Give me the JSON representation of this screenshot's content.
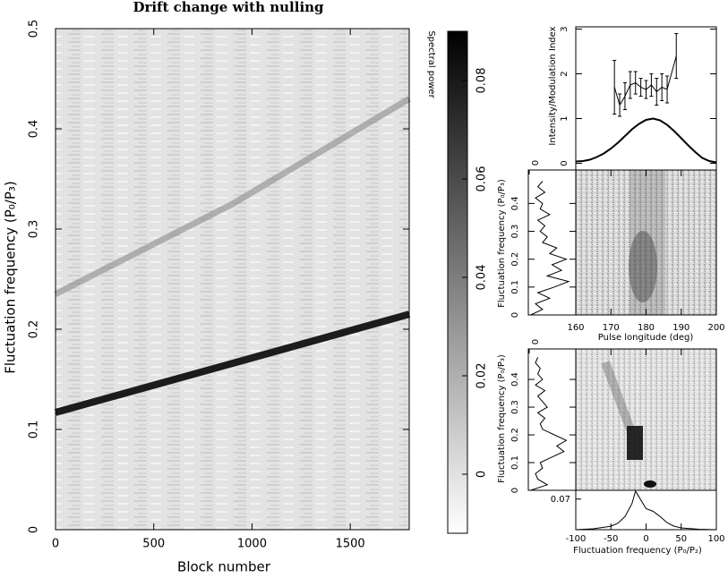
{
  "chart_data": [
    {
      "type": "heatmap",
      "title": "Drift change with nulling",
      "xlabel": "Block number",
      "ylabel": "Fluctuation frequency (P₀/P₃)",
      "xlim": [
        0,
        1800
      ],
      "xticks": [
        0,
        500,
        1000,
        1500
      ],
      "ylim": [
        0,
        0.5
      ],
      "yticks": [
        0,
        0.1,
        0.2,
        0.3,
        0.4,
        0.5
      ],
      "features": [
        {
          "x": [
            0,
            900,
            1800
          ],
          "values": [
            0.235,
            0.325,
            0.43
          ],
          "color": "#8a8a8a"
        },
        {
          "x": [
            0,
            900,
            1800
          ],
          "values": [
            0.117,
            0.166,
            0.215
          ],
          "color": "#111111"
        }
      ],
      "colorbar": {
        "label": "Spectral power",
        "lim": [
          -0.012,
          0.09
        ],
        "ticks": [
          0,
          0.02,
          0.04,
          0.06,
          0.08
        ]
      }
    },
    {
      "type": "line",
      "ylabel": "Intensity/Modulation Index",
      "xlim": [
        160,
        200
      ],
      "ylim": [
        -0.15,
        3.05
      ],
      "yticks": [
        0,
        1,
        2,
        3
      ],
      "series": [
        {
          "x": [
            160,
            162,
            164,
            166,
            168,
            170,
            172,
            174,
            176,
            178,
            180,
            182,
            184,
            186,
            188,
            190,
            192,
            194,
            196,
            198,
            200
          ],
          "values": [
            0.04,
            0.05,
            0.08,
            0.14,
            0.22,
            0.33,
            0.46,
            0.61,
            0.76,
            0.88,
            0.97,
            1.0,
            0.96,
            0.86,
            0.72,
            0.56,
            0.4,
            0.25,
            0.12,
            0.05,
            0.02
          ],
          "color": "#000000"
        },
        {
          "x": [
            171,
            172.5,
            174,
            175.5,
            177,
            178.5,
            180,
            181.5,
            183,
            184.5,
            186,
            188.6
          ],
          "values": [
            1.7,
            1.3,
            1.5,
            1.75,
            1.8,
            1.7,
            1.65,
            1.75,
            1.6,
            1.7,
            1.65,
            2.4
          ],
          "errors": [
            0.6,
            0.25,
            0.3,
            0.3,
            0.25,
            0.2,
            0.2,
            0.25,
            0.3,
            0.3,
            0.3,
            0.5
          ],
          "color": "#000000"
        }
      ]
    },
    {
      "type": "heatmap",
      "xlabel": "Pulse longitude (deg)",
      "ylabel": "Fluctuation frequency (P₀/P₃)",
      "xlim": [
        160,
        200
      ],
      "xticks": [
        160,
        170,
        180,
        190,
        200
      ],
      "ylim": [
        0,
        0.52
      ],
      "yticks": [
        0,
        0.1,
        0.2,
        0.3,
        0.4
      ],
      "side": {
        "xlim": [
          0,
          1
        ],
        "xticks": [
          0
        ],
        "x": [
          0,
          0.02,
          0.04,
          0.06,
          0.08,
          0.1,
          0.12,
          0.14,
          0.16,
          0.18,
          0.2,
          0.22,
          0.24,
          0.26,
          0.28,
          0.3,
          0.32,
          0.34,
          0.36,
          0.38,
          0.4,
          0.42,
          0.44,
          0.46,
          0.48
        ],
        "values": [
          0.05,
          0.3,
          0.15,
          0.45,
          0.2,
          0.55,
          0.85,
          0.4,
          0.7,
          0.5,
          0.8,
          0.45,
          0.6,
          0.3,
          0.4,
          0.25,
          0.35,
          0.2,
          0.45,
          0.25,
          0.3,
          0.15,
          0.35,
          0.2,
          0.3
        ]
      }
    },
    {
      "type": "heatmap",
      "xlabel": "Fluctuation frequency (P₀/P₂)",
      "ylabel": "Fluctuation frequency (P₀/P₃)",
      "xlim": [
        -100,
        100
      ],
      "xticks": [
        -100,
        -50,
        0,
        50,
        100
      ],
      "ylim": [
        0,
        0.51
      ],
      "yticks": [
        0,
        0.1,
        0.2,
        0.3,
        0.4
      ],
      "side": {
        "xlim": [
          0,
          1
        ],
        "xticks": [
          0
        ],
        "x": [
          0,
          0.02,
          0.04,
          0.06,
          0.08,
          0.1,
          0.12,
          0.14,
          0.16,
          0.18,
          0.2,
          0.22,
          0.24,
          0.26,
          0.28,
          0.3,
          0.32,
          0.34,
          0.36,
          0.38,
          0.4,
          0.42,
          0.44,
          0.46,
          0.48
        ],
        "values": [
          0.05,
          0.4,
          0.2,
          0.15,
          0.3,
          0.25,
          0.5,
          0.75,
          0.6,
          0.8,
          0.55,
          0.3,
          0.25,
          0.35,
          0.2,
          0.4,
          0.3,
          0.2,
          0.35,
          0.15,
          0.3,
          0.2,
          0.25,
          0.15,
          0.2
        ]
      },
      "profile": {
        "ylim": [
          0,
          0.09
        ],
        "yticks": [
          0.07
        ],
        "x": [
          -100,
          -75,
          -50,
          -40,
          -30,
          -20,
          -15,
          -10,
          0,
          10,
          20,
          30,
          40,
          50,
          75,
          100
        ],
        "values": [
          0,
          0.002,
          0.008,
          0.015,
          0.03,
          0.06,
          0.088,
          0.075,
          0.048,
          0.042,
          0.03,
          0.016,
          0.008,
          0.004,
          0.001,
          0
        ]
      }
    }
  ]
}
